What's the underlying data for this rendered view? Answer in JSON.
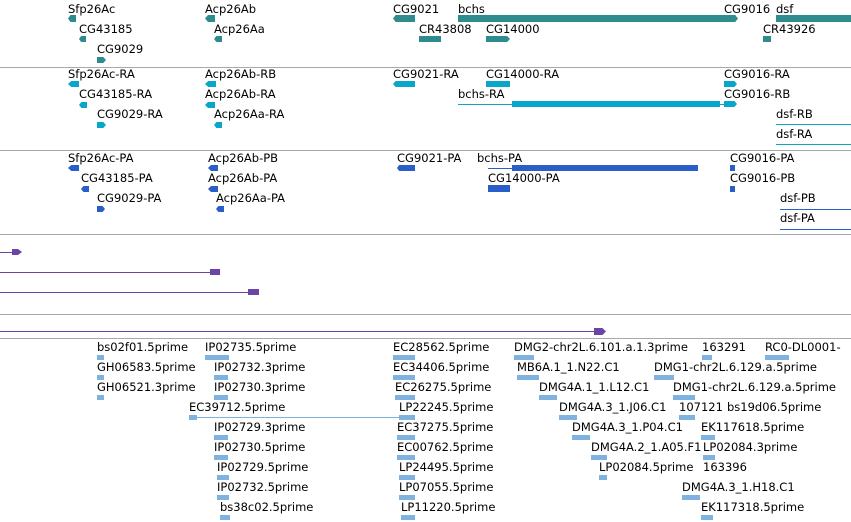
{
  "colors": {
    "gene": "#2e8b8e",
    "transcript": "#08a6c9",
    "protein": "#2a5ec8",
    "purple": "#6b44a8",
    "est": "#7fb2df",
    "separator": "#a9a9a9"
  },
  "tracks": {
    "genes": {
      "labels": [
        "Sfp26Ac",
        "Acp26Ab",
        "CG9021",
        "bchs",
        "CG9016",
        "dsf",
        "CG43185",
        "Acp26Aa",
        "CR43808",
        "CG14000",
        "CR43926",
        "CG9029"
      ]
    },
    "transcripts": {
      "labels": [
        "Sfp26Ac-RA",
        "Acp26Ab-RB",
        "CG9021-RA",
        "CG14000-RA",
        "CG9016-RA",
        "CG43185-RA",
        "Acp26Ab-RA",
        "bchs-RA",
        "CG9016-RB",
        "CG9029-RA",
        "Acp26Aa-RA",
        "dsf-RB",
        "dsf-RA"
      ]
    },
    "proteins": {
      "labels": [
        "Sfp26Ac-PA",
        "Acp26Ab-PB",
        "CG9021-PA",
        "bchs-PA",
        "CG9016-PA",
        "CG43185-PA",
        "Acp26Ab-PA",
        "CG14000-PA",
        "CG9016-PB",
        "CG9029-PA",
        "Acp26Aa-PA",
        "dsf-PB",
        "dsf-PA"
      ]
    },
    "ests": {
      "labels": [
        "bs02f01.5prime",
        "IP02735.5prime",
        "EC28562.5prime",
        "DMG2-chr2L.6.101.a.1.3prime",
        "163291",
        "RC0-DL0001-",
        "GH06583.5prime",
        "IP02732.3prime",
        "EC34406.5prime",
        "MB6A.1_1.N22.C1",
        "DMG1-chr2L.6.129.a.5prime",
        "GH06521.3prime",
        "IP02730.3prime",
        "EC26275.5prime",
        "DMG4A.1_1.L12.C1",
        "DMG1-chr2L.6.129.a.5prime",
        "EC39712.5prime",
        "LP22245.5prime",
        "DMG4A.3_1.J06.C1",
        "107121",
        "bs19d06.5prime",
        "IP02729.3prime",
        "EC37275.5prime",
        "DMG4A.3_1.P04.C1",
        "EK117618.5prime",
        "IP02730.5prime",
        "EC00762.5prime",
        "DMG4A.2_1.A05.F1",
        "LP02084.3prime",
        "IP02729.5prime",
        "LP24495.5prime",
        "LP02084.5prime",
        "163396",
        "IP02732.5prime",
        "LP07055.5prime",
        "DMG4A.3_1.H18.C1",
        "bs38c02.5prime",
        "LP11220.5prime",
        "EK117318.5prime"
      ]
    }
  }
}
